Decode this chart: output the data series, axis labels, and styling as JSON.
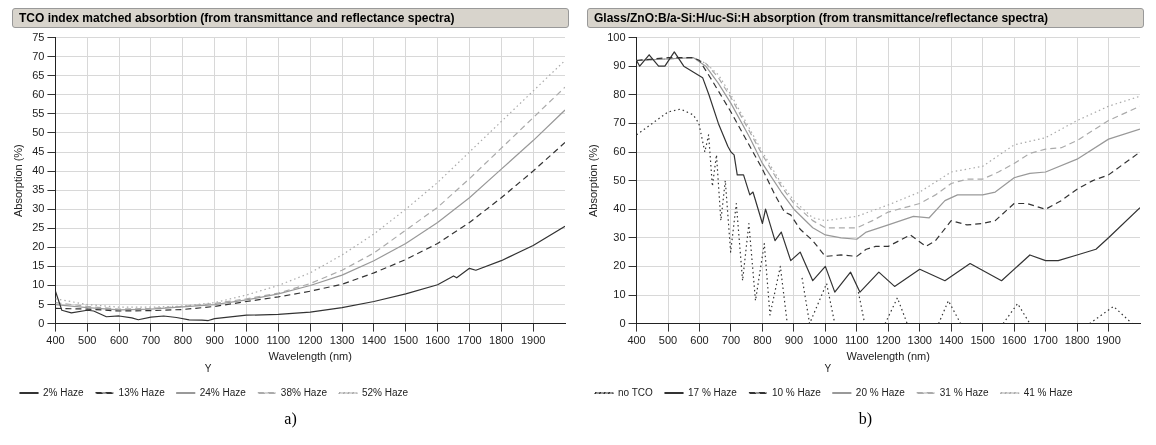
{
  "chart_data": [
    {
      "type": "line",
      "title": "TCO index matched absorbtion (from transmittance and reflectance spectra)",
      "xlabel": "Wavelength (nm)",
      "ylabel": "Absorption (%)",
      "legend_title": "Y",
      "annotations": [
        "a)"
      ],
      "xlim": [
        400,
        2000
      ],
      "ylim": [
        0,
        75
      ],
      "xticks": [
        400,
        500,
        600,
        700,
        800,
        900,
        1000,
        1100,
        1200,
        1300,
        1400,
        1500,
        1600,
        1700,
        1800,
        1900
      ],
      "yticks": [
        0,
        5,
        10,
        15,
        20,
        25,
        30,
        35,
        40,
        45,
        50,
        55,
        60,
        65,
        70,
        75
      ],
      "grid": true,
      "legend": "bottom",
      "marker": "none",
      "series": [
        {
          "name": "2% Haze",
          "color": "#333333",
          "line_style": "solid",
          "x": [
            400,
            420,
            450,
            500,
            520,
            560,
            600,
            640,
            660,
            700,
            740,
            780,
            820,
            860,
            880,
            900,
            1000,
            1100,
            1200,
            1300,
            1400,
            1500,
            1600,
            1650,
            1660,
            1700,
            1720,
            1800,
            1900,
            2000
          ],
          "values": [
            8.5,
            3.5,
            2.8,
            3.5,
            3.3,
            1.8,
            2,
            1.5,
            1,
            1.7,
            2,
            1.6,
            1,
            0.9,
            0.8,
            1.3,
            2.2,
            2.4,
            3,
            4.2,
            5.8,
            7.8,
            10.2,
            12.5,
            12,
            14.5,
            14,
            16.5,
            20.5,
            25.5
          ]
        },
        {
          "name": "13% Haze",
          "color": "#333333",
          "line_style": "dashed",
          "x": [
            400,
            500,
            600,
            700,
            800,
            900,
            1000,
            1100,
            1200,
            1300,
            1400,
            1500,
            1600,
            1700,
            1800,
            1900,
            2000
          ],
          "values": [
            4,
            3.8,
            3.3,
            3.4,
            3.7,
            4.5,
            5.8,
            7,
            8.5,
            10.3,
            13.3,
            16.8,
            21,
            26.5,
            33,
            40,
            47.5
          ]
        },
        {
          "name": "24% Haze",
          "color": "#999999",
          "line_style": "solid",
          "x": [
            400,
            500,
            600,
            700,
            800,
            900,
            1000,
            1100,
            1200,
            1300,
            1400,
            1500,
            1600,
            1700,
            1800,
            1900,
            2000
          ],
          "values": [
            5,
            4.2,
            3.6,
            3.8,
            4.4,
            5,
            6.2,
            7.8,
            10,
            12.7,
            16.5,
            21,
            26.5,
            33,
            40.5,
            48,
            56
          ]
        },
        {
          "name": "38% Haze",
          "color": "#aaaaaa",
          "line_style": "dashed",
          "x": [
            400,
            500,
            600,
            700,
            800,
            900,
            1000,
            1100,
            1200,
            1300,
            1400,
            1500,
            1600,
            1700,
            1800,
            1900,
            2000
          ],
          "values": [
            5.5,
            4.5,
            3.8,
            4,
            4.5,
            5.3,
            6.5,
            8,
            10.5,
            14,
            18.5,
            24.5,
            30.5,
            38,
            46,
            54,
            62
          ]
        },
        {
          "name": "52% Haze",
          "color": "#aaaaaa",
          "line_style": "dotted",
          "x": [
            400,
            500,
            600,
            700,
            800,
            900,
            1000,
            1100,
            1200,
            1300,
            1400,
            1500,
            1600,
            1700,
            1800,
            1900,
            2000
          ],
          "values": [
            6.5,
            5,
            4.3,
            4.3,
            4.6,
            5.5,
            7.5,
            10,
            13.3,
            18,
            23.5,
            30,
            37,
            45,
            53,
            61,
            69
          ]
        }
      ]
    },
    {
      "type": "line",
      "title": "Glass/ZnO:B/a-Si:H/uc-Si:H absorption (from transmittance/reflectance spectra)",
      "xlabel": "Wavelength (nm)",
      "ylabel": "Absorption (%)",
      "legend_title": "Y",
      "annotations": [
        "b)"
      ],
      "xlim": [
        400,
        2000
      ],
      "ylim": [
        0,
        100
      ],
      "xticks": [
        400,
        500,
        600,
        700,
        800,
        900,
        1000,
        1100,
        1200,
        1300,
        1400,
        1500,
        1600,
        1700,
        1800,
        1900
      ],
      "yticks": [
        0,
        10,
        20,
        30,
        40,
        50,
        60,
        70,
        80,
        90,
        100
      ],
      "grid": true,
      "legend": "bottom",
      "marker": "none",
      "series": [
        {
          "name": "no TCO",
          "color": "#333333",
          "line_style": "dotted",
          "x": [
            400,
            450,
            500,
            540,
            580,
            598,
            617,
            629,
            641,
            654,
            668,
            682,
            699,
            717,
            737,
            757,
            778,
            806,
            824,
            857,
            879,
            900,
            926,
            950,
            1004,
            1030,
            1060,
            1105,
            1125,
            1160,
            1190,
            1229,
            1260,
            1300,
            1360,
            1391,
            1430,
            1500,
            1565,
            1611,
            1650,
            1750,
            1840,
            1916,
            1975
          ],
          "values": [
            66,
            70,
            74,
            75,
            73,
            70,
            60,
            66,
            48,
            59,
            36,
            50,
            25,
            42,
            15,
            35,
            8,
            28,
            3,
            20,
            0,
            null,
            16,
            0,
            14,
            0,
            null,
            11,
            0,
            null,
            0,
            9,
            0,
            null,
            0,
            8,
            0,
            null,
            0,
            7,
            0,
            null,
            0,
            6,
            0
          ]
        },
        {
          "name": "17 % Haze",
          "color": "#333333",
          "line_style": "solid",
          "x": [
            400,
            410,
            440,
            470,
            490,
            520,
            550,
            580,
            610,
            630,
            660,
            690,
            700,
            710,
            720,
            740,
            760,
            770,
            800,
            810,
            840,
            860,
            890,
            920,
            960,
            1000,
            1030,
            1080,
            1110,
            1170,
            1220,
            1300,
            1380,
            1460,
            1560,
            1650,
            1700,
            1740,
            1800,
            1860,
            1900,
            2000
          ],
          "values": [
            92,
            90,
            94,
            90,
            90,
            95,
            90,
            88,
            86,
            80,
            70,
            62,
            60,
            59,
            52,
            52,
            45,
            46,
            35,
            40,
            29,
            32,
            22,
            25,
            15,
            20,
            11,
            18,
            11,
            18,
            13,
            19,
            15,
            21,
            15,
            24,
            22,
            22,
            24,
            26,
            30,
            40.5
          ]
        },
        {
          "name": "10 % Haze",
          "color": "#333333",
          "line_style": "dashed",
          "x": [
            400,
            500,
            580,
            600,
            640,
            700,
            760,
            800,
            840,
            870,
            890,
            920,
            960,
            1000,
            1050,
            1100,
            1130,
            1160,
            1200,
            1270,
            1320,
            1350,
            1400,
            1450,
            1500,
            1540,
            1600,
            1640,
            1700,
            1750,
            1800,
            1850,
            1900,
            2000
          ],
          "values": [
            92,
            93,
            93,
            92,
            85,
            74,
            62,
            54,
            45,
            39,
            38,
            33,
            29,
            23.5,
            24,
            23.5,
            26,
            27,
            27,
            31,
            27,
            29,
            36,
            34.5,
            35,
            36,
            42,
            42,
            40,
            43,
            47,
            50,
            52,
            60
          ]
        },
        {
          "name": "20 % Haze",
          "color": "#999999",
          "line_style": "solid",
          "x": [
            400,
            580,
            620,
            660,
            700,
            760,
            800,
            860,
            900,
            960,
            1000,
            1050,
            1100,
            1130,
            1200,
            1280,
            1330,
            1380,
            1420,
            1500,
            1540,
            1600,
            1650,
            1700,
            1800,
            1900,
            2000
          ],
          "values": [
            92,
            93,
            90,
            84,
            77,
            65,
            56,
            46,
            40,
            33.5,
            31,
            30,
            29.5,
            32,
            34.5,
            37.5,
            37,
            43,
            45,
            45,
            46,
            51,
            52.5,
            53,
            57.5,
            64.5,
            68
          ]
        },
        {
          "name": "31 % Haze",
          "color": "#aaaaaa",
          "line_style": "dashed",
          "x": [
            400,
            580,
            620,
            660,
            700,
            760,
            800,
            860,
            900,
            960,
            1000,
            1050,
            1100,
            1150,
            1200,
            1300,
            1350,
            1400,
            1450,
            1500,
            1550,
            1600,
            1650,
            1700,
            1750,
            1800,
            1900,
            2000
          ],
          "values": [
            92,
            93,
            91,
            86,
            79,
            67,
            59,
            48,
            42,
            36,
            33.5,
            33.5,
            33.5,
            36,
            39,
            42,
            45,
            49,
            50.5,
            50.5,
            53,
            56,
            59.5,
            61,
            61.5,
            64,
            71,
            76
          ]
        },
        {
          "name": "41 % Haze",
          "color": "#aaaaaa",
          "line_style": "dotted",
          "x": [
            400,
            580,
            620,
            660,
            700,
            760,
            800,
            860,
            900,
            960,
            1000,
            1100,
            1200,
            1300,
            1400,
            1500,
            1600,
            1700,
            1800,
            1900,
            2000
          ],
          "values": [
            92,
            93,
            91,
            87,
            80,
            68,
            60,
            49,
            43,
            37,
            36,
            37.5,
            41.5,
            46,
            53,
            55,
            62.5,
            65,
            71,
            76,
            79.5
          ]
        }
      ]
    }
  ]
}
